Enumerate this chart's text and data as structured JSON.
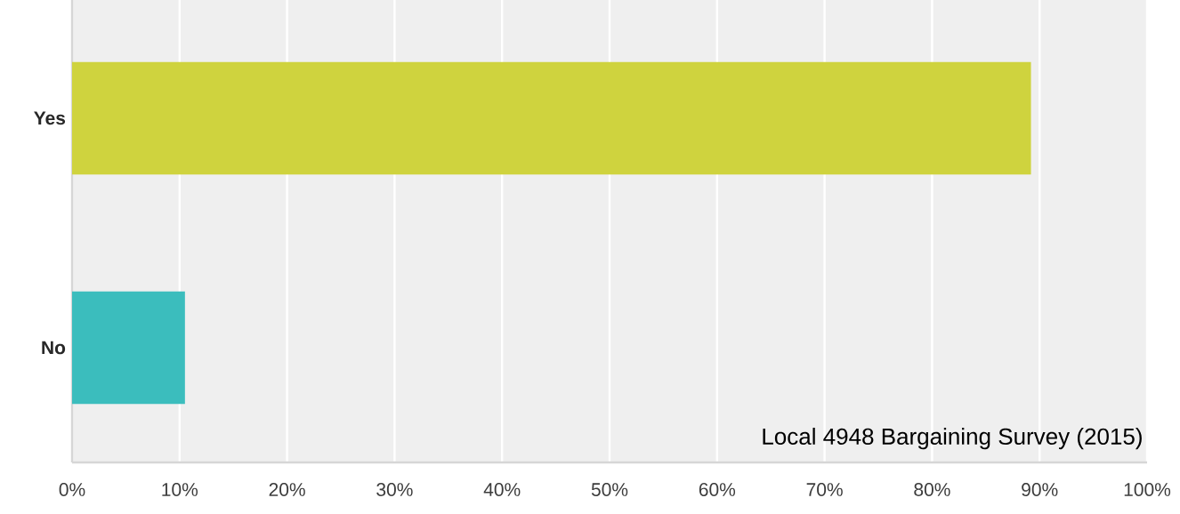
{
  "chart_data": {
    "type": "bar",
    "orientation": "horizontal",
    "categories": [
      "Yes",
      "No"
    ],
    "values": [
      89.2,
      10.5
    ],
    "colors": [
      "#cfd33e",
      "#3bbdbd"
    ],
    "xlim": [
      0,
      100
    ],
    "xticks": [
      {
        "value": 0,
        "label": "0%"
      },
      {
        "value": 10,
        "label": "10%"
      },
      {
        "value": 20,
        "label": "20%"
      },
      {
        "value": 30,
        "label": "30%"
      },
      {
        "value": 40,
        "label": "40%"
      },
      {
        "value": 50,
        "label": "50%"
      },
      {
        "value": 60,
        "label": "60%"
      },
      {
        "value": 70,
        "label": "70%"
      },
      {
        "value": 80,
        "label": "80%"
      },
      {
        "value": 90,
        "label": "90%"
      },
      {
        "value": 100,
        "label": "100%"
      }
    ],
    "grid": "x",
    "annotations": [
      "Local 4948 Bargaining Survey (2015)"
    ]
  }
}
